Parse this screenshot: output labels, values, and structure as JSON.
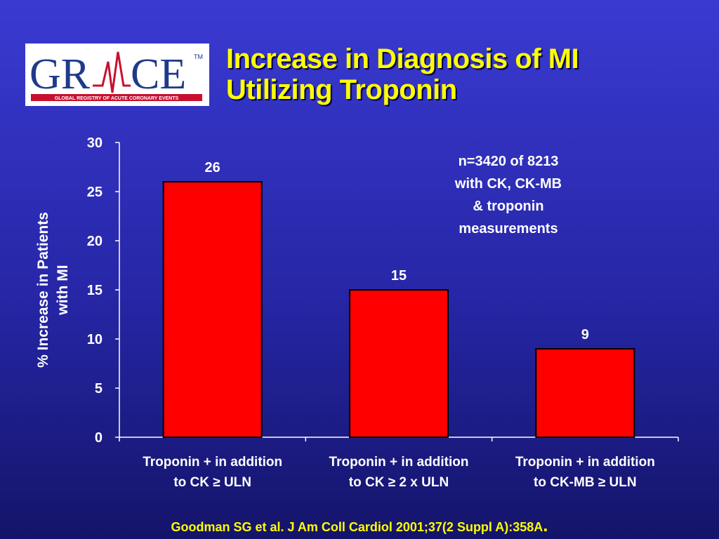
{
  "logo": {
    "text": "GRACE",
    "tagline": "GLOBAL REGISTRY OF ACUTE CORONARY EVENTS",
    "trademark": "TM",
    "colors": {
      "main": "#1f3a8a",
      "accent": "#c8102e"
    }
  },
  "title": {
    "line1": "Increase in Diagnosis of MI",
    "line2": "Utilizing Troponin"
  },
  "chart_data": {
    "type": "bar",
    "title": "",
    "ylabel": "% Increase in Patients with MI",
    "ylabel_lines": [
      "% Increase in Patients",
      "with MI"
    ],
    "xlabel": "",
    "ylim": [
      0,
      30
    ],
    "yticks": [
      0,
      5,
      10,
      15,
      20,
      25,
      30
    ],
    "categories": [
      [
        "Troponin + in addition",
        "to CK ≥ ULN"
      ],
      [
        "Troponin + in addition",
        "to CK ≥ 2 x ULN"
      ],
      [
        "Troponin + in addition",
        "to CK-MB ≥ ULN"
      ]
    ],
    "values": [
      26,
      15,
      9
    ],
    "data_labels": [
      "26",
      "15",
      "9"
    ],
    "bar_color": "#ff0000",
    "text_color": "#ffffff",
    "annotation": [
      "n=3420 of 8213",
      "with CK, CK-MB",
      "& troponin",
      "measurements"
    ],
    "grid": false,
    "legend": "none"
  },
  "footer": {
    "citation": "Goodman SG",
    "citation_rest": "et al. J Am Coll Cardiol 2001;37(2 Suppl A):358A",
    "end": "."
  }
}
